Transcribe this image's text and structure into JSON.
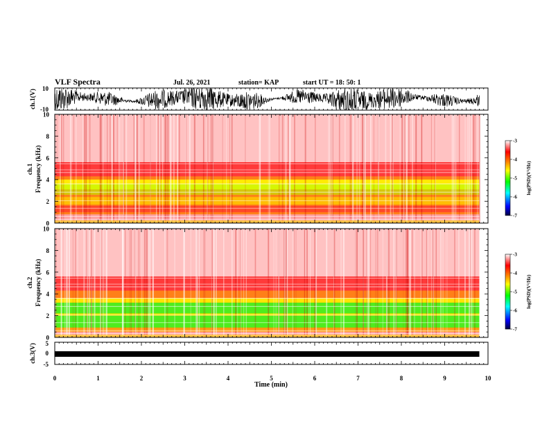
{
  "header": {
    "title": "VLF Spectra",
    "date": "Jul. 26, 2021",
    "station": "station= KAP",
    "start": "start UT = 18: 50: 1"
  },
  "chart_data": [
    {
      "type": "line",
      "name": "ch1-waveform",
      "ylabel": "ch.1(V)",
      "ylim": [
        -10,
        10
      ],
      "yticks": [
        "10",
        "-10"
      ],
      "xlim": [
        0,
        10
      ],
      "x_extent_min": 9.8
    },
    {
      "type": "heatmap",
      "name": "ch1-spectrogram",
      "ylabel": "ch.1\nFrequency (kHz)",
      "ylim": [
        0,
        10
      ],
      "yticks": [
        "10",
        "8",
        "6",
        "4",
        "2",
        "0"
      ],
      "xlim": [
        0,
        10
      ],
      "colorbar": {
        "label": "log(PSD)(V²/Hz)",
        "range": [
          -7,
          -3
        ],
        "ticks": [
          "-3",
          "-4",
          "-5",
          "-6",
          "-7"
        ]
      }
    },
    {
      "type": "heatmap",
      "name": "ch2-spectrogram",
      "ylabel": "ch.2\nFrequency (kHz)",
      "ylim": [
        0,
        10
      ],
      "yticks": [
        "10",
        "8",
        "6",
        "4",
        "2",
        "0"
      ],
      "xlim": [
        0,
        10
      ],
      "colorbar": {
        "label": "log(PSD)(V²/Hz)",
        "range": [
          -7,
          -3
        ],
        "ticks": [
          "-3",
          "-4",
          "-5",
          "-6",
          "-7"
        ]
      }
    },
    {
      "type": "line",
      "name": "ch3-waveform",
      "ylabel": "ch.3(V)",
      "ylim": [
        -5,
        5
      ],
      "yticks": [
        "5",
        "0",
        "-5"
      ],
      "xlim": [
        0,
        10
      ],
      "xlabel": "Time (min)",
      "xticks": [
        "0",
        "1",
        "2",
        "3",
        "4",
        "5",
        "6",
        "7",
        "8",
        "9",
        "10"
      ]
    }
  ],
  "colors": {
    "bg": "#ffffff",
    "axis": "#000000",
    "spec_low": "#ff0000",
    "spec_mid": "#ffff00",
    "spec_high": "#00ff00"
  }
}
